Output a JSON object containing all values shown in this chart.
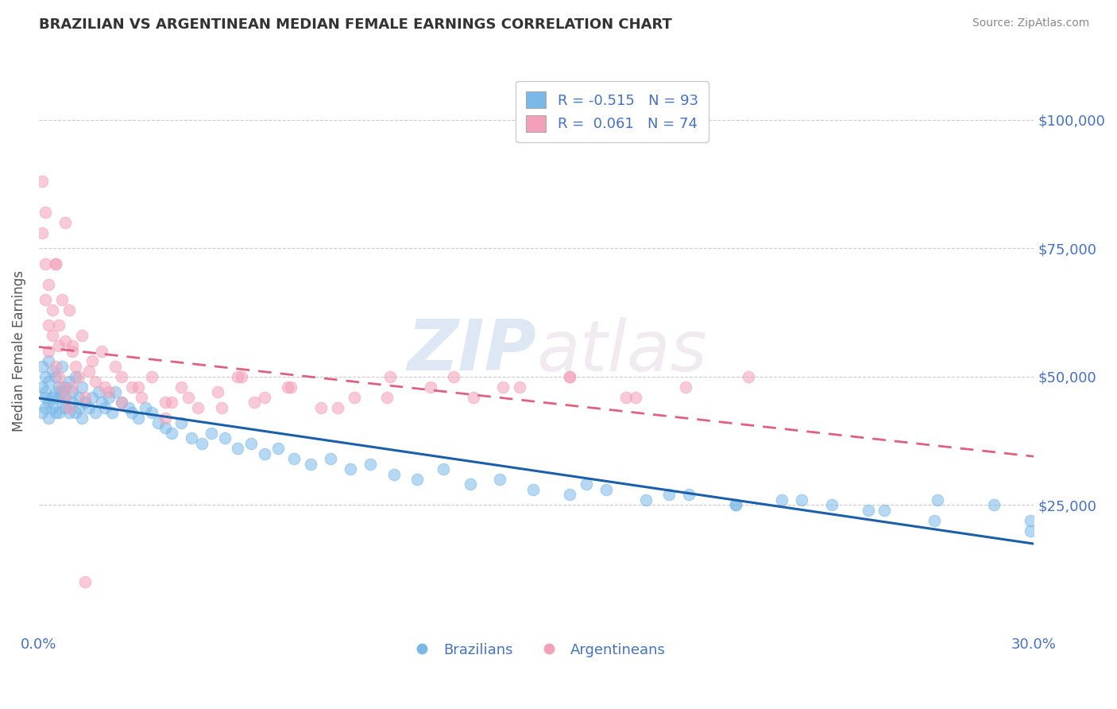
{
  "title": "BRAZILIAN VS ARGENTINEAN MEDIAN FEMALE EARNINGS CORRELATION CHART",
  "source_text": "Source: ZipAtlas.com",
  "ylabel": "Median Female Earnings",
  "xlim": [
    0.0,
    0.3
  ],
  "ylim": [
    0,
    110000
  ],
  "yticks": [
    0,
    25000,
    50000,
    75000,
    100000
  ],
  "ytick_labels": [
    "",
    "$25,000",
    "$50,000",
    "$75,000",
    "$100,000"
  ],
  "xtick_labels": [
    "0.0%",
    "30.0%"
  ],
  "legend_r1": "-0.515",
  "legend_n1": "93",
  "legend_r2": "0.061",
  "legend_n2": "74",
  "blue_color": "#7ab8e8",
  "pink_color": "#f4a0b8",
  "trend_blue": "#1a5fa8",
  "trend_pink": "#e06080",
  "watermark_zip": "ZIP",
  "watermark_atlas": "atlas",
  "background_color": "#ffffff",
  "grid_color": "#cccccc",
  "title_color": "#333333",
  "tick_label_color": "#4472c4",
  "brazil_x": [
    0.001,
    0.001,
    0.001,
    0.002,
    0.002,
    0.002,
    0.002,
    0.003,
    0.003,
    0.003,
    0.003,
    0.004,
    0.004,
    0.004,
    0.005,
    0.005,
    0.005,
    0.006,
    0.006,
    0.006,
    0.007,
    0.007,
    0.007,
    0.008,
    0.008,
    0.008,
    0.009,
    0.009,
    0.01,
    0.01,
    0.011,
    0.011,
    0.012,
    0.012,
    0.013,
    0.013,
    0.014,
    0.015,
    0.016,
    0.017,
    0.018,
    0.019,
    0.02,
    0.021,
    0.022,
    0.023,
    0.025,
    0.027,
    0.028,
    0.03,
    0.032,
    0.034,
    0.036,
    0.038,
    0.04,
    0.043,
    0.046,
    0.049,
    0.052,
    0.056,
    0.06,
    0.064,
    0.068,
    0.072,
    0.077,
    0.082,
    0.088,
    0.094,
    0.1,
    0.107,
    0.114,
    0.122,
    0.13,
    0.139,
    0.149,
    0.16,
    0.171,
    0.183,
    0.196,
    0.21,
    0.224,
    0.239,
    0.255,
    0.271,
    0.288,
    0.299,
    0.299,
    0.165,
    0.19,
    0.21,
    0.23,
    0.25,
    0.27
  ],
  "brazil_y": [
    48000,
    43000,
    52000,
    46000,
    50000,
    44000,
    47000,
    45000,
    53000,
    42000,
    49000,
    46000,
    51000,
    44000,
    47000,
    43000,
    50000,
    46000,
    48000,
    43000,
    47000,
    45000,
    52000,
    44000,
    48000,
    46000,
    43000,
    49000,
    45000,
    47000,
    50000,
    43000,
    46000,
    44000,
    48000,
    42000,
    45000,
    44000,
    46000,
    43000,
    47000,
    45000,
    44000,
    46000,
    43000,
    47000,
    45000,
    44000,
    43000,
    42000,
    44000,
    43000,
    41000,
    40000,
    39000,
    41000,
    38000,
    37000,
    39000,
    38000,
    36000,
    37000,
    35000,
    36000,
    34000,
    33000,
    34000,
    32000,
    33000,
    31000,
    30000,
    32000,
    29000,
    30000,
    28000,
    27000,
    28000,
    26000,
    27000,
    25000,
    26000,
    25000,
    24000,
    26000,
    25000,
    22000,
    20000,
    29000,
    27000,
    25000,
    26000,
    24000,
    22000
  ],
  "arg_x": [
    0.001,
    0.001,
    0.002,
    0.002,
    0.002,
    0.003,
    0.003,
    0.003,
    0.004,
    0.004,
    0.005,
    0.005,
    0.006,
    0.006,
    0.006,
    0.007,
    0.007,
    0.008,
    0.008,
    0.009,
    0.009,
    0.01,
    0.01,
    0.011,
    0.012,
    0.013,
    0.014,
    0.015,
    0.016,
    0.017,
    0.019,
    0.021,
    0.023,
    0.025,
    0.028,
    0.031,
    0.034,
    0.038,
    0.043,
    0.048,
    0.054,
    0.061,
    0.068,
    0.076,
    0.085,
    0.095,
    0.106,
    0.118,
    0.131,
    0.145,
    0.16,
    0.177,
    0.195,
    0.214,
    0.025,
    0.03,
    0.038,
    0.045,
    0.055,
    0.065,
    0.075,
    0.09,
    0.105,
    0.125,
    0.14,
    0.16,
    0.18,
    0.02,
    0.04,
    0.06,
    0.005,
    0.008,
    0.01,
    0.014
  ],
  "arg_y": [
    88000,
    78000,
    72000,
    65000,
    82000,
    68000,
    60000,
    55000,
    63000,
    58000,
    72000,
    52000,
    60000,
    56000,
    50000,
    65000,
    48000,
    57000,
    46000,
    63000,
    44000,
    55000,
    48000,
    52000,
    50000,
    58000,
    46000,
    51000,
    53000,
    49000,
    55000,
    47000,
    52000,
    50000,
    48000,
    46000,
    50000,
    45000,
    48000,
    44000,
    47000,
    50000,
    46000,
    48000,
    44000,
    46000,
    50000,
    48000,
    46000,
    48000,
    50000,
    46000,
    48000,
    50000,
    45000,
    48000,
    42000,
    46000,
    44000,
    45000,
    48000,
    44000,
    46000,
    50000,
    48000,
    50000,
    46000,
    48000,
    45000,
    50000,
    72000,
    80000,
    56000,
    10000
  ]
}
